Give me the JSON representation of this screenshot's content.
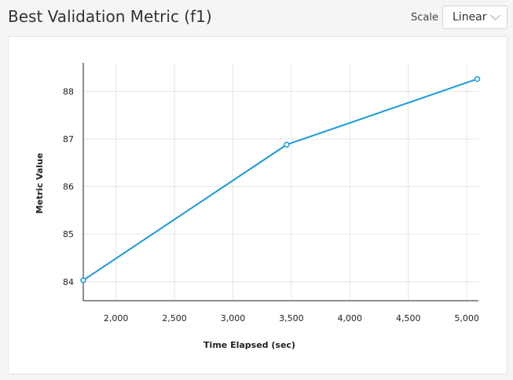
{
  "header": {
    "title": "Best Validation Metric (f1)",
    "scale_label": "Scale",
    "scale_value": "Linear"
  },
  "colors": {
    "line": "#1a9bd7",
    "grid": "#e6e6e6",
    "axis": "#222222"
  },
  "chart_data": {
    "type": "line",
    "xlabel": "Time Elapsed (sec)",
    "ylabel": "Metric Value",
    "xlim": [
      1720,
      5100
    ],
    "ylim": [
      83.6,
      88.6
    ],
    "x_ticks": [
      2000,
      2500,
      3000,
      3500,
      4000,
      4500,
      5000
    ],
    "x_tick_labels": [
      "2,000",
      "2,500",
      "3,000",
      "3,500",
      "4,000",
      "4,500",
      "5,000"
    ],
    "y_ticks": [
      84,
      85,
      86,
      87,
      88
    ],
    "y_tick_labels": [
      "84",
      "85",
      "86",
      "87",
      "88"
    ],
    "grid": true,
    "series": [
      {
        "x": [
          1720,
          3460,
          5090
        ],
        "y": [
          84.03,
          86.88,
          88.26
        ]
      }
    ]
  }
}
